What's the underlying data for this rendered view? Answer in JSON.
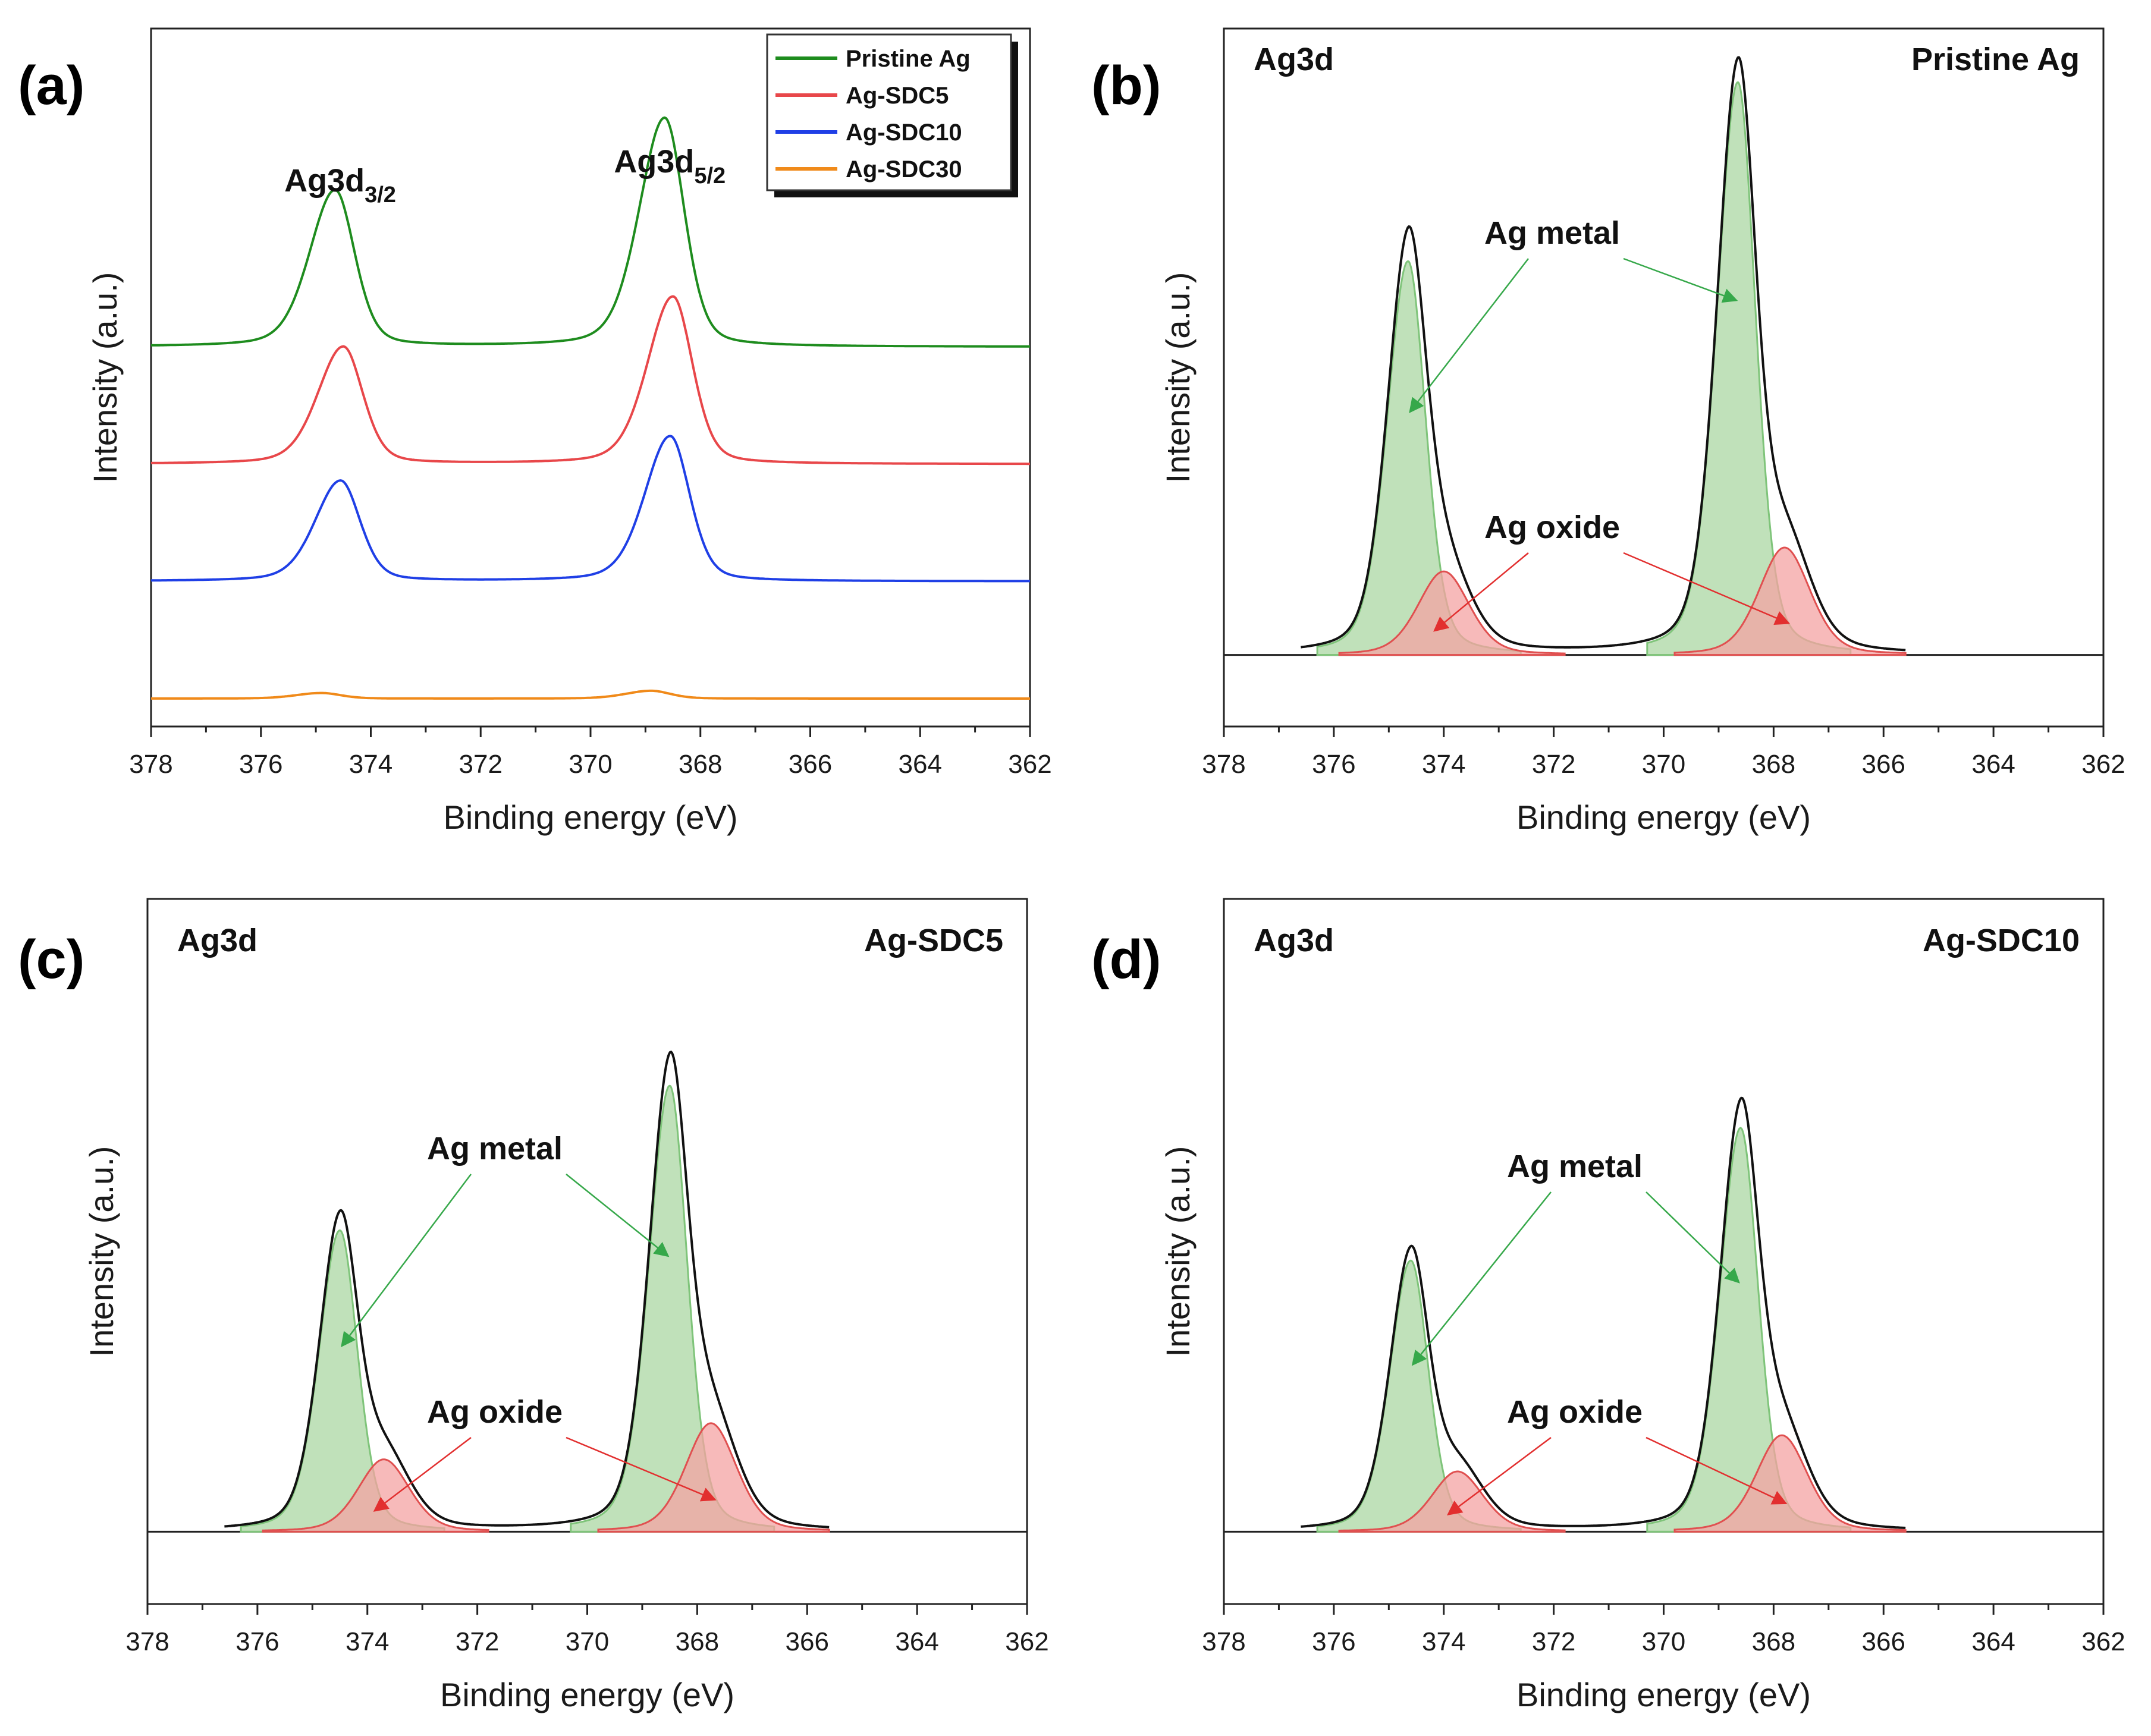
{
  "chart_data": [
    {
      "panel": "(a)",
      "type": "line",
      "title": "",
      "xlabel": "Binding energy (eV)",
      "ylabel": "Intensity (a.u.)",
      "xlim": [
        378,
        362
      ],
      "xticks": [
        378,
        376,
        374,
        372,
        370,
        368,
        366,
        364,
        362
      ],
      "ylim": [
        0,
        1.25
      ],
      "peak_labels": [
        {
          "main": "Ag3d",
          "sub": "3/2",
          "x": 374.6
        },
        {
          "main": "Ag3d",
          "sub": "5/2",
          "x": 368.6
        }
      ],
      "series": [
        {
          "name": "Pristine Ag",
          "color": "#1e8c1e",
          "offset": 0.68,
          "peak1": {
            "center": 374.65,
            "height": 0.28
          },
          "peak2": {
            "center": 368.65,
            "height": 0.41
          }
        },
        {
          "name": "Ag-SDC5",
          "color": "#e8474a",
          "offset": 0.47,
          "peak1": {
            "center": 374.5,
            "height": 0.21
          },
          "peak2": {
            "center": 368.5,
            "height": 0.3
          }
        },
        {
          "name": "Ag-SDC10",
          "color": "#1f3fe6",
          "offset": 0.26,
          "peak1": {
            "center": 374.55,
            "height": 0.18
          },
          "peak2": {
            "center": 368.55,
            "height": 0.26
          }
        },
        {
          "name": "Ag-SDC30",
          "color": "#f08a1a",
          "offset": 0.05,
          "peak1": {
            "center": 374.9,
            "height": 0.01
          },
          "peak2": {
            "center": 368.9,
            "height": 0.014
          }
        }
      ]
    },
    {
      "panel": "(b)",
      "type": "line",
      "title": "Pristine Ag",
      "core_level": "Ag3d",
      "xlabel": "Binding energy (eV)",
      "ylabel": "Intensity (a.u.)",
      "xlim": [
        378,
        362
      ],
      "xticks": [
        378,
        376,
        374,
        372,
        370,
        368,
        366,
        364,
        362
      ],
      "ylim": [
        -0.12,
        1.05
      ],
      "metal_label": "Ag metal",
      "oxide_label": "Ag oxide",
      "components": {
        "metal": [
          {
            "center": 374.65,
            "height": 0.66
          },
          {
            "center": 368.65,
            "height": 0.96
          }
        ],
        "oxide": [
          {
            "center": 374.0,
            "height": 0.14
          },
          {
            "center": 367.8,
            "height": 0.18
          }
        ]
      }
    },
    {
      "panel": "(c)",
      "type": "line",
      "title": "Ag-SDC5",
      "core_level": "Ag3d",
      "xlabel": "Binding energy (eV)",
      "ylabel": "Intensity (a.u.)",
      "xlim": [
        378,
        362
      ],
      "xticks": [
        378,
        376,
        374,
        372,
        370,
        368,
        366,
        364,
        362
      ],
      "ylim": [
        -0.12,
        1.05
      ],
      "metal_label": "Ag metal",
      "oxide_label": "Ag oxide",
      "components": {
        "metal": [
          {
            "center": 374.5,
            "height": 0.5
          },
          {
            "center": 368.5,
            "height": 0.74
          }
        ],
        "oxide": [
          {
            "center": 373.7,
            "height": 0.12
          },
          {
            "center": 367.75,
            "height": 0.18
          }
        ]
      }
    },
    {
      "panel": "(d)",
      "type": "line",
      "title": "Ag-SDC10",
      "core_level": "Ag3d",
      "xlabel": "Binding energy (eV)",
      "ylabel": "Intensity (a.u.)",
      "xlim": [
        378,
        362
      ],
      "xticks": [
        378,
        376,
        374,
        372,
        370,
        368,
        366,
        364,
        362
      ],
      "ylim": [
        -0.12,
        1.05
      ],
      "metal_label": "Ag metal",
      "oxide_label": "Ag oxide",
      "components": {
        "metal": [
          {
            "center": 374.6,
            "height": 0.45
          },
          {
            "center": 368.6,
            "height": 0.67
          }
        ],
        "oxide": [
          {
            "center": 373.75,
            "height": 0.1
          },
          {
            "center": 367.85,
            "height": 0.16
          }
        ]
      }
    }
  ],
  "colors": {
    "metal_fill": "#b5dcae",
    "metal_line": "#7fc47a",
    "oxide_fill": "#f4a3a3",
    "oxide_line": "#e05050",
    "envelope": "#111111",
    "metal_arrow": "#36a84a",
    "oxide_arrow": "#e22f2f"
  }
}
